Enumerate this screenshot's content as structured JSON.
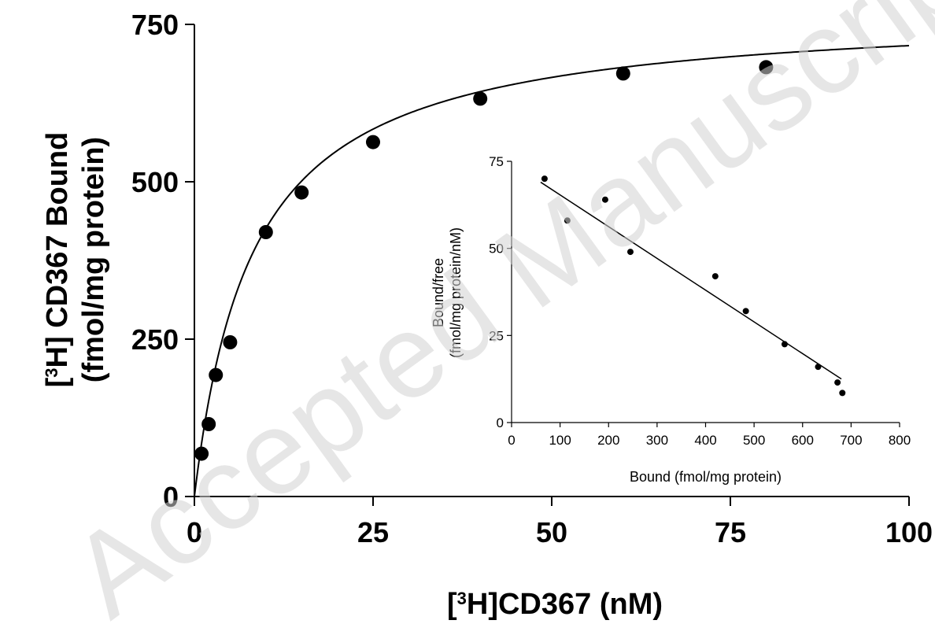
{
  "watermark": "Accepted Manuscript",
  "chart_data": [
    {
      "id": "main",
      "type": "scatter",
      "xlabel": {
        "prefix": "[",
        "sup": "3",
        "rest": "H]CD367 (nM)"
      },
      "ylabel_line1": {
        "prefix": "[",
        "sup": "3",
        "rest": "H] CD367 Bound"
      },
      "ylabel_line2": "(fmol/mg protein)",
      "xlim": [
        0,
        100
      ],
      "ylim": [
        0,
        750
      ],
      "xticks": [
        0,
        25,
        50,
        75,
        100
      ],
      "yticks": [
        0,
        250,
        500,
        750
      ],
      "grid": false,
      "series": [
        {
          "kind": "points",
          "x": [
            1,
            2,
            3,
            5,
            10,
            15,
            25,
            40,
            60,
            80
          ],
          "y": [
            68,
            115,
            193,
            245,
            420,
            483,
            563,
            632,
            672,
            682
          ]
        },
        {
          "kind": "fit-curve",
          "model": "one-site saturation",
          "bmax": 775,
          "kd": 8.2
        }
      ]
    },
    {
      "id": "inset",
      "type": "scatter",
      "xlabel": "Bound (fmol/mg protein)",
      "ylabel_line1": "Bound/free",
      "ylabel_line2": "(fmol/mg protein/nM)",
      "xlim": [
        0,
        800
      ],
      "ylim": [
        0,
        75
      ],
      "xticks": [
        0,
        100,
        200,
        300,
        400,
        500,
        600,
        700,
        800
      ],
      "yticks": [
        0,
        25,
        50,
        75
      ],
      "grid": false,
      "series": [
        {
          "kind": "points",
          "x": [
            68,
            115,
            193,
            245,
            420,
            483,
            563,
            632,
            672,
            682
          ],
          "y": [
            70,
            58,
            64,
            49,
            42,
            32,
            22.5,
            16,
            11.5,
            8.5
          ]
        },
        {
          "kind": "regression-line",
          "x": [
            60,
            680
          ],
          "y": [
            69,
            12.5
          ]
        }
      ]
    }
  ]
}
